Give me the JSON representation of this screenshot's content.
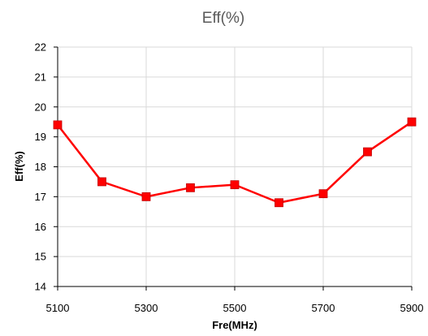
{
  "chart_data": {
    "type": "line",
    "title": "Eff(%)",
    "xlabel": "Fre(MHz)",
    "ylabel": "Eff(%)",
    "x": [
      5100,
      5200,
      5300,
      5400,
      5500,
      5600,
      5700,
      5800,
      5900
    ],
    "series": [
      {
        "values": [
          19.4,
          17.5,
          17.0,
          17.3,
          17.4,
          16.8,
          17.1,
          18.5,
          19.5
        ]
      }
    ],
    "xlim": [
      5100,
      5900
    ],
    "ylim": [
      14,
      22
    ],
    "xticks": [
      5100,
      5300,
      5500,
      5700,
      5900
    ],
    "yticks": [
      14,
      15,
      16,
      17,
      18,
      19,
      20,
      21,
      22
    ],
    "grid": true,
    "legend": "none",
    "colors": {
      "line": "#ff0000",
      "marker": "#ff0000",
      "grid": "#d9d9d9",
      "axis": "#000000",
      "title": "#595959"
    }
  }
}
